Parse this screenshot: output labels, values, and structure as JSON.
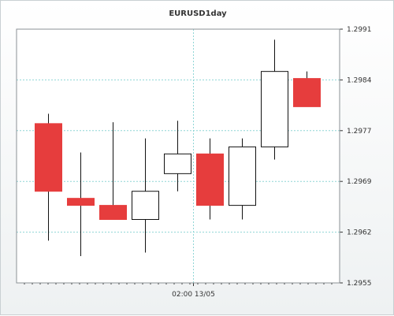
{
  "chart_data": {
    "type": "candlestick",
    "title": "EURUSD1day",
    "y_ticks": [
      "1.2991",
      "1.2984",
      "1.2977",
      "1.2969",
      "1.2962",
      "1.2955"
    ],
    "ylim": [
      1.2955,
      1.2991
    ],
    "x_ticks": [
      {
        "label": "02:00 13/05",
        "index": 5
      }
    ],
    "grid": true,
    "candles": [
      {
        "open": 1.29776,
        "high": 1.2979,
        "low": 1.2961,
        "close": 1.2968,
        "color": "#e63d3d"
      },
      {
        "open": 1.2967,
        "high": 1.29735,
        "low": 1.29588,
        "close": 1.2966,
        "color": "#e63d3d"
      },
      {
        "open": 1.2966,
        "high": 1.29778,
        "low": 1.2964,
        "close": 1.2964,
        "color": "#e63d3d"
      },
      {
        "open": 1.2964,
        "high": 1.29755,
        "low": 1.29593,
        "close": 1.2968,
        "color": "#ffffff"
      },
      {
        "open": 1.29705,
        "high": 1.2978,
        "low": 1.2968,
        "close": 1.29733,
        "color": "#ffffff"
      },
      {
        "open": 1.29733,
        "high": 1.29755,
        "low": 1.2964,
        "close": 1.2966,
        "color": "#e63d3d"
      },
      {
        "open": 1.2966,
        "high": 1.29755,
        "low": 1.2964,
        "close": 1.29743,
        "color": "#ffffff"
      },
      {
        "open": 1.29743,
        "high": 1.29895,
        "low": 1.29725,
        "close": 1.2985,
        "color": "#ffffff"
      },
      {
        "open": 1.2984,
        "high": 1.2985,
        "low": 1.298,
        "close": 1.298,
        "color": "#e63d3d"
      }
    ],
    "colors": {
      "bear": "#e63d3d",
      "bull": "#ffffff",
      "outline": "#111111",
      "grid": "#8fd6d6"
    }
  }
}
